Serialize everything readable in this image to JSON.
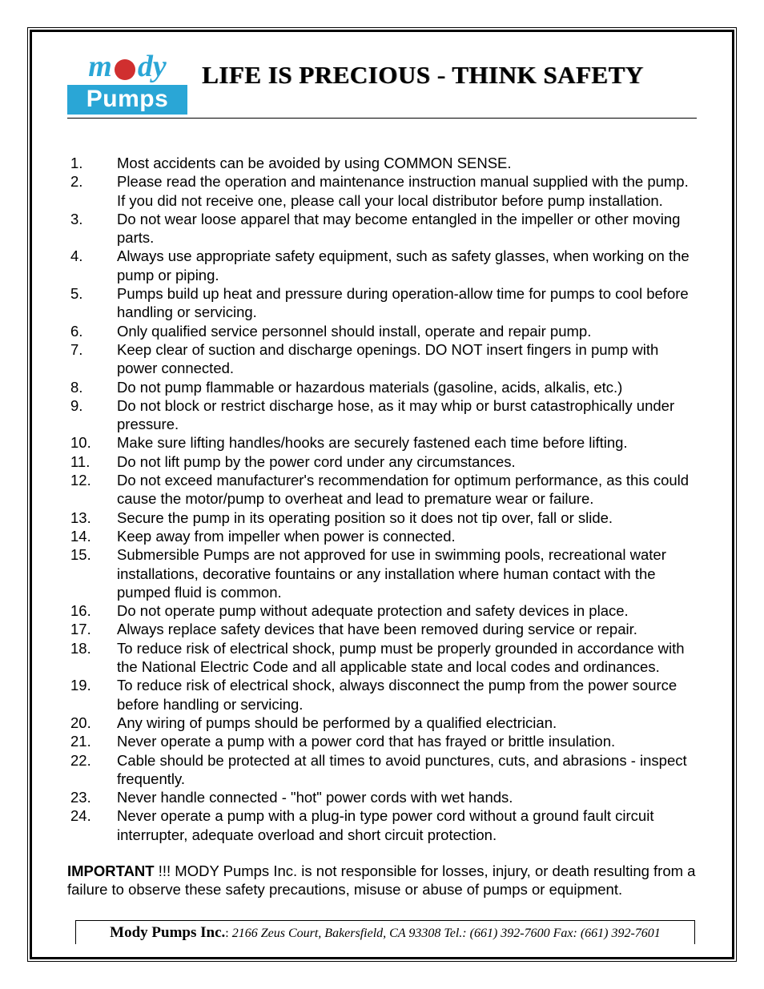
{
  "logo": {
    "text_left": "m",
    "text_right": "dy",
    "bottom": "Pumps",
    "top_color": "#2aa6d6",
    "globe_color": "#d02f2f",
    "bottom_bg": "#2aa6d6",
    "bottom_fg": "#ffffff"
  },
  "title": "LIFE IS PRECIOUS - THINK SAFETY",
  "items": [
    "Most accidents can be avoided by using COMMON SENSE.",
    "Please read the operation and maintenance instruction manual supplied with the pump. If you did not receive one, please call your local distributor before pump installation.",
    "Do not wear loose apparel that may become entangled in the impeller or other moving parts.",
    "Always use appropriate safety equipment, such as safety glasses, when working on the pump or piping.",
    "Pumps build up heat and pressure during operation-allow time for pumps to cool before handling or servicing.",
    "Only qualified service personnel should install, operate and repair pump.",
    "Keep clear of suction and discharge openings. DO NOT insert fingers in pump with power connected.",
    "Do not pump flammable or hazardous materials (gasoline, acids, alkalis, etc.)",
    "Do not block or restrict discharge hose, as it may whip or burst catastrophically under pressure.",
    "Make sure lifting handles/hooks are securely fastened each time before lifting.",
    "Do not lift pump by the power cord under any circumstances.",
    "Do not exceed manufacturer's recommendation for optimum performance, as this could cause the motor/pump to overheat and lead to premature wear or failure.",
    "Secure the pump in its operating position so it does not tip over, fall or slide.",
    "Keep away from impeller when power is connected.",
    "Submersible Pumps are not approved for use in swimming pools, recreational water installations, decorative fountains or any installation where human contact with the pumped fluid is common.",
    "Do not operate pump without adequate protection and safety devices in place.",
    "Always replace safety devices that have been removed during service or repair.",
    "To reduce risk of electrical shock, pump must be properly grounded in accordance with the National Electric Code and all applicable state and local codes and ordinances.",
    "To reduce risk of electrical shock, always disconnect the pump from the power source before handling or servicing.",
    "Any wiring of pumps should be performed by a qualified electrician.",
    "Never operate a pump with a power cord that has frayed or brittle insulation.",
    "Cable should be protected at all times to avoid punctures, cuts, and abrasions - inspect frequently.",
    "Never handle connected - \"hot\" power cords with wet hands.",
    "Never operate a pump with a plug-in type power cord without a ground fault circuit interrupter, adequate overload and short circuit protection."
  ],
  "important": {
    "lead": "IMPORTANT",
    "rest": " !!! MODY Pumps Inc. is not responsible for losses, injury, or death resulting from a failure to observe these safety precautions, misuse or abuse of pumps or equipment."
  },
  "footer": {
    "company": "Mody Pumps Inc.",
    "sep": ": ",
    "address": "2166 Zeus Court, Bakersfield, CA 93308 Tel.: (661) 392-7600   Fax: (661) 392-7601"
  }
}
